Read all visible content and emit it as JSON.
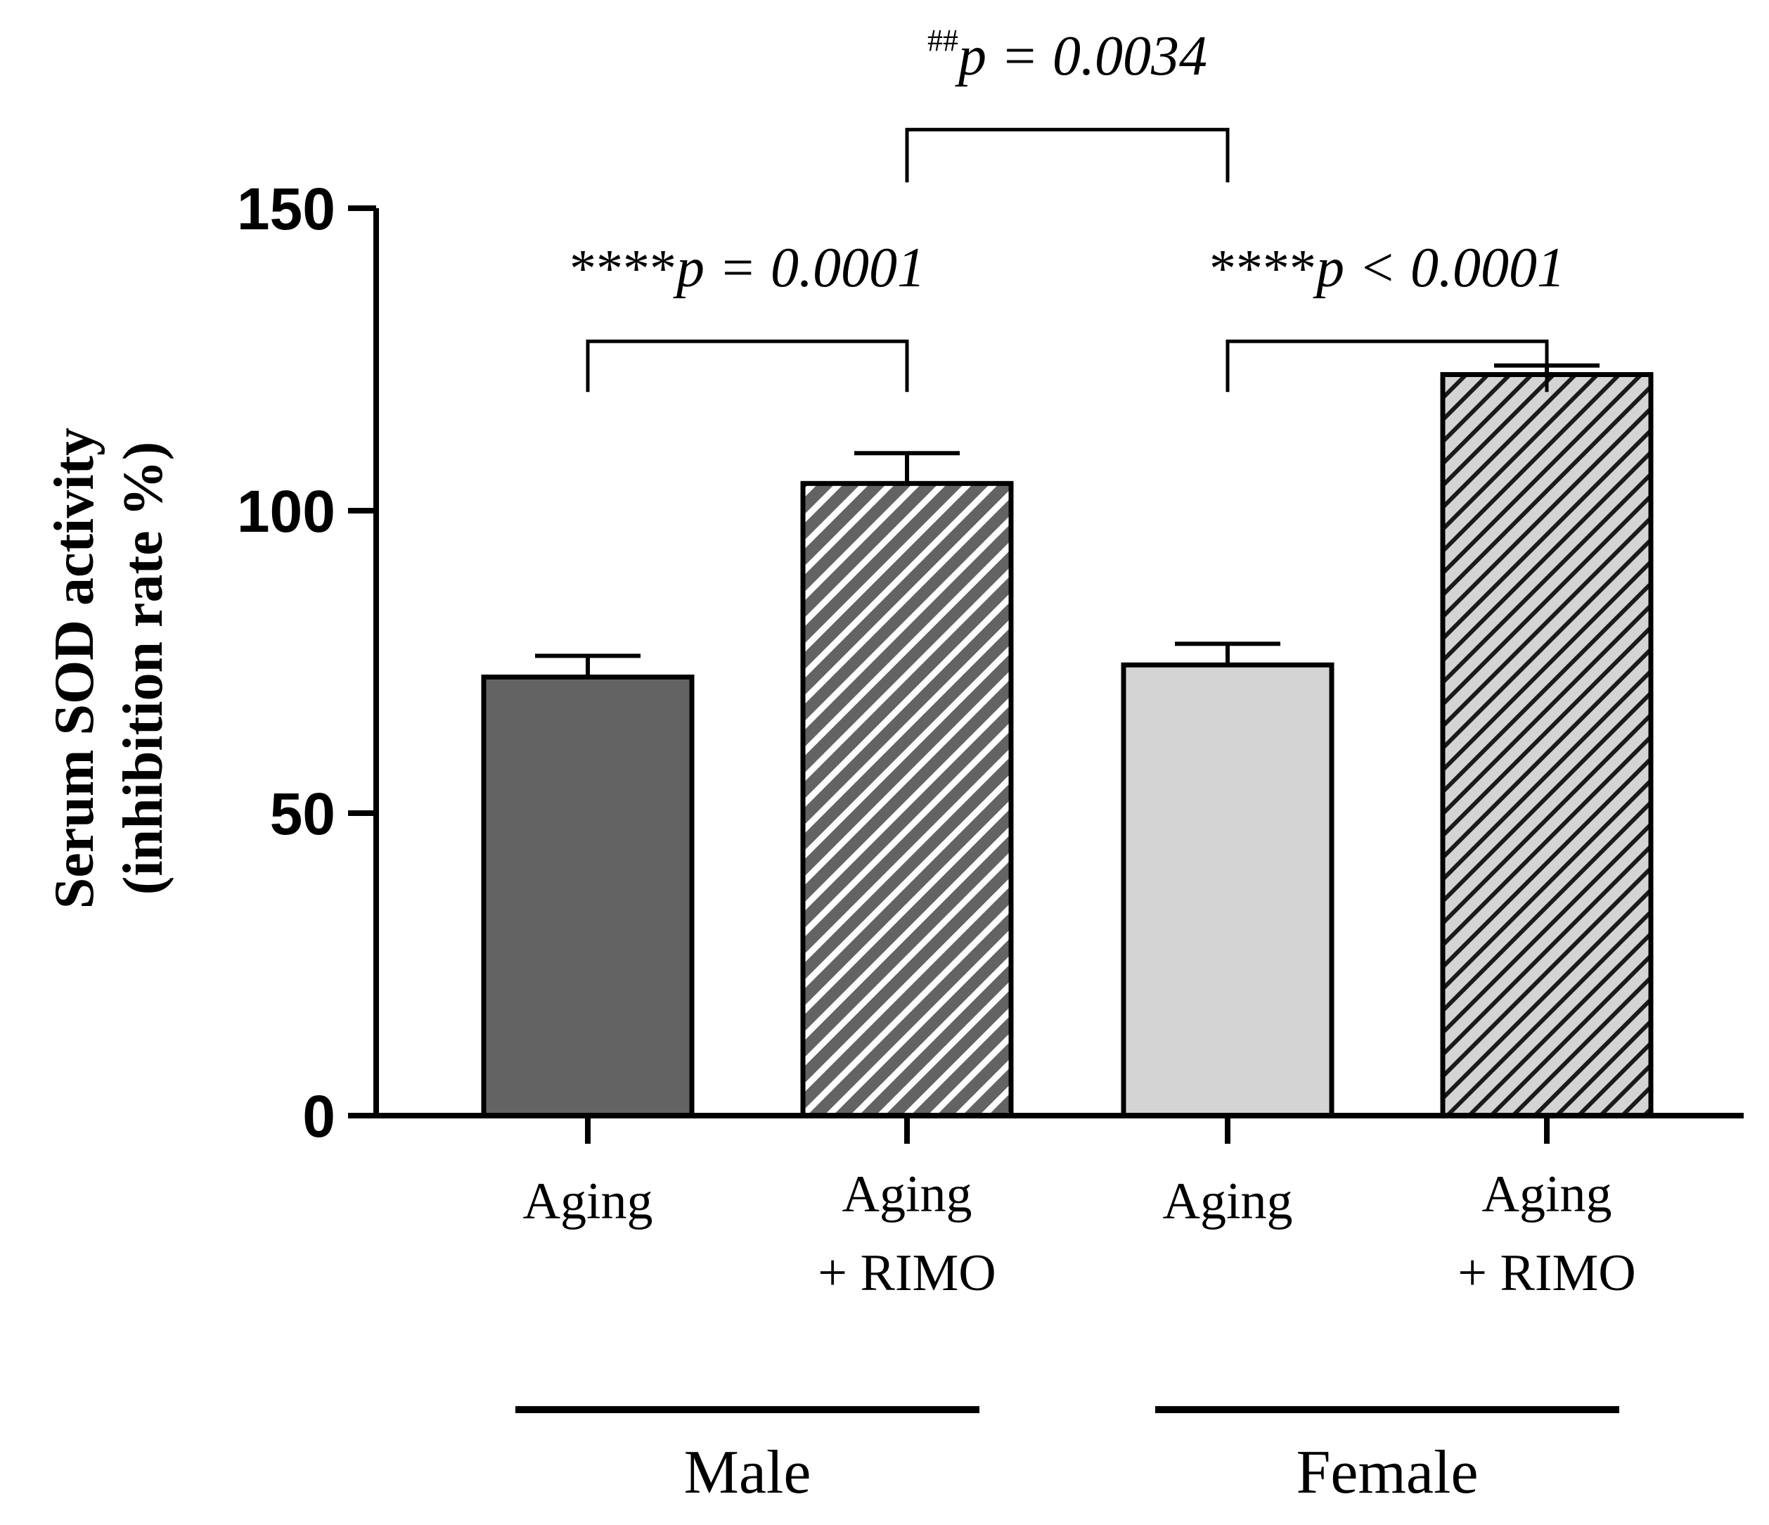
{
  "chart_data": {
    "type": "bar",
    "title": "",
    "xlabel": "",
    "ylabel_line1": "Serum SOD activity",
    "ylabel_line2": "(inhibition rate %)",
    "ylim": [
      0,
      150
    ],
    "yticks": [
      0,
      50,
      100,
      150
    ],
    "ytick_labels": [
      "0",
      "50",
      "100",
      "150"
    ],
    "grid": false,
    "categories": [
      {
        "line1": "Aging",
        "line2": ""
      },
      {
        "line1": "Aging",
        "line2": "+ RIMO"
      },
      {
        "line1": "Aging",
        "line2": ""
      },
      {
        "line1": "Aging",
        "line2": "+ RIMO"
      }
    ],
    "values": [
      72.5,
      104.5,
      74.5,
      122.5
    ],
    "errors": [
      3.5,
      5.0,
      3.5,
      1.5
    ],
    "colors": [
      "#636363",
      "#636363",
      "#d4d4d4",
      "#d4d4d4"
    ],
    "hatched": [
      false,
      true,
      false,
      true
    ],
    "hatch_line_colors": [
      "#ffffff",
      "#ffffff",
      "#000000",
      "#000000"
    ],
    "groups": [
      {
        "label": "Male",
        "bars": [
          0,
          1
        ]
      },
      {
        "label": "Female",
        "bars": [
          2,
          3
        ]
      }
    ],
    "annotations": [
      {
        "from": 0,
        "to": 1,
        "prefix": "****",
        "text": "p = 0.0001",
        "bracket_value": 128
      },
      {
        "from": 2,
        "to": 3,
        "prefix": "****",
        "text": "p < 0.0001",
        "bracket_value": 128
      },
      {
        "from": 1,
        "to": 2,
        "prefix": "##",
        "text": "p = 0.0034",
        "bracket_value": 163
      }
    ]
  }
}
